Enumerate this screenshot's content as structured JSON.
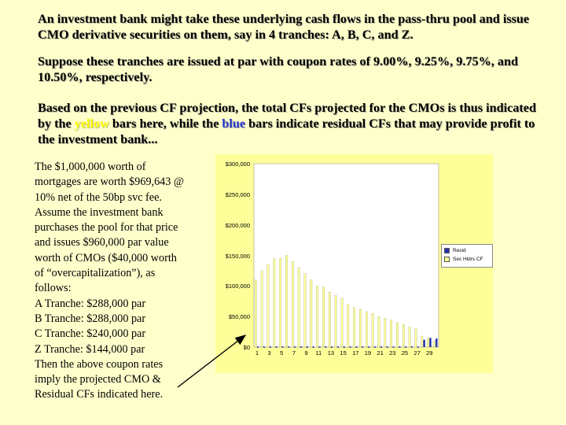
{
  "paragraphs": {
    "p1": "An investment bank might take these underlying cash flows in the pass-thru pool and issue CMO derivative securities on them, say in 4 tranches: A, B, C, and Z.",
    "p2": "Suppose these tranches are issued at par with coupon rates of 9.00%, 9.25%, 9.75%, and 10.50%, respectively.",
    "p3_before_yellow": "Based on the previous CF projection, the total CFs projected for the CMOs is thus indicated by the ",
    "p3_yellow": "yellow",
    "p3_middle": " bars here, while the ",
    "p3_blue": "blue",
    "p3_after": " bars indicate residual CFs that may provide profit to the investment bank..."
  },
  "left_text": [
    "The $1,000,000 worth of",
    "mortgages are worth $969,643 @",
    "10% net of the 50bp svc fee.",
    "Assume the investment bank",
    "purchases the pool for that price",
    "and issues $960,000 par value",
    "worth of CMOs ($40,000 worth",
    "of “overcapitalization”), as",
    "follows:",
    "A Tranche:  $288,000 par",
    "B Tranche:  $288,000 par",
    "C Tranche:  $240,000 par",
    "Z Tranche:  $144,000 par",
    "Then the above coupon rates",
    "imply the projected CMO &",
    "Residual CFs indicated here."
  ],
  "colors": {
    "background": "#ffffcc",
    "plot_background": "#ffffff",
    "chart_background": "#ffff99",
    "sec_bar": "#ffff99",
    "resid_bar": "#2233aa",
    "yellow_text": "#ffff00",
    "blue_text": "#2233cc"
  },
  "chart_data": {
    "type": "bar",
    "categories": [
      1,
      2,
      3,
      4,
      5,
      6,
      7,
      8,
      9,
      10,
      11,
      12,
      13,
      14,
      15,
      16,
      17,
      18,
      19,
      20,
      21,
      22,
      23,
      24,
      25,
      26,
      27,
      28,
      29,
      30
    ],
    "x_tick_labels": [
      "1",
      "3",
      "5",
      "7",
      "9",
      "11",
      "13",
      "15",
      "17",
      "19",
      "21",
      "23",
      "25",
      "27",
      "29"
    ],
    "y_tick_labels": [
      "$0",
      "$50,000",
      "$100,000",
      "$150,000",
      "$200,000",
      "$250,000",
      "$300,000"
    ],
    "ylim": [
      0,
      300000
    ],
    "series": [
      {
        "name": "Sec Hldrs CF",
        "color": "#ffff99",
        "values": [
          110000,
          125000,
          135000,
          145000,
          145000,
          150000,
          140000,
          130000,
          120000,
          110000,
          100000,
          98000,
          90000,
          85000,
          80000,
          70000,
          65000,
          62000,
          58000,
          55000,
          50000,
          47000,
          44000,
          40000,
          37000,
          33000,
          30000,
          18000,
          15000,
          10000
        ]
      },
      {
        "name": "Resid",
        "color": "#2233aa",
        "values": [
          1000,
          1000,
          1000,
          1000,
          1000,
          1000,
          1000,
          1000,
          1000,
          1000,
          1000,
          1000,
          1000,
          1000,
          1000,
          1000,
          1000,
          1000,
          1000,
          1000,
          1000,
          1000,
          1000,
          1000,
          1000,
          1000,
          1000,
          12000,
          15000,
          14000
        ]
      }
    ],
    "legend": [
      "Resid",
      "Sec Hldrs CF"
    ],
    "legend_position": "right",
    "grid": false
  }
}
